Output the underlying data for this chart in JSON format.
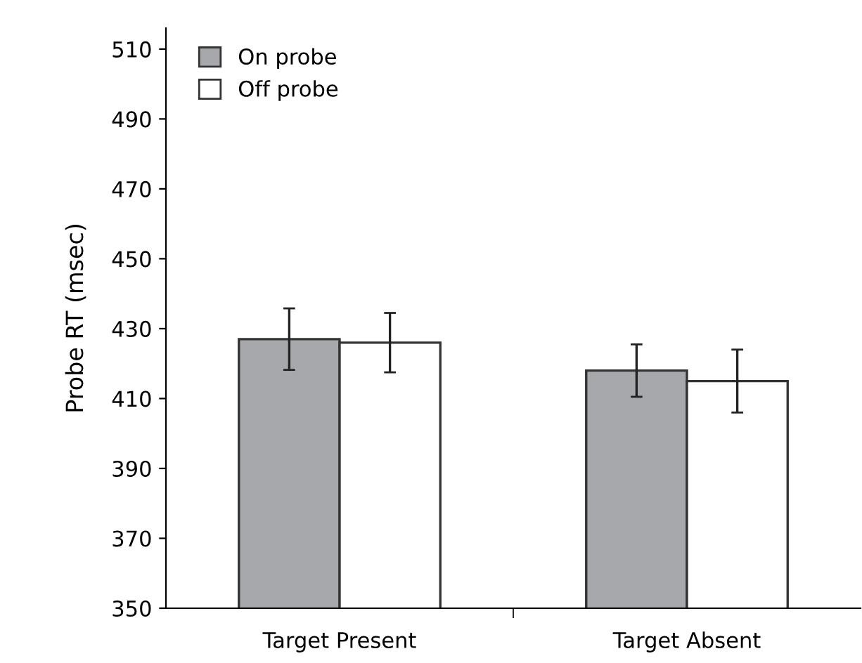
{
  "chart_data": {
    "type": "bar",
    "ylabel": "Probe RT (msec)",
    "categories": [
      "Target Present",
      "Target Absent"
    ],
    "series": [
      {
        "name": "On probe",
        "color": "#a7a8ab",
        "values": [
          427,
          418
        ],
        "errors": [
          8.8,
          7.5
        ]
      },
      {
        "name": "Off probe",
        "color": "#ffffff",
        "values": [
          426,
          415
        ],
        "errors": [
          8.5,
          9
        ]
      }
    ],
    "ylim": [
      350,
      516
    ],
    "yticks": [
      350,
      370,
      390,
      410,
      430,
      450,
      470,
      490,
      510
    ],
    "grid": false,
    "legend": "top left"
  }
}
